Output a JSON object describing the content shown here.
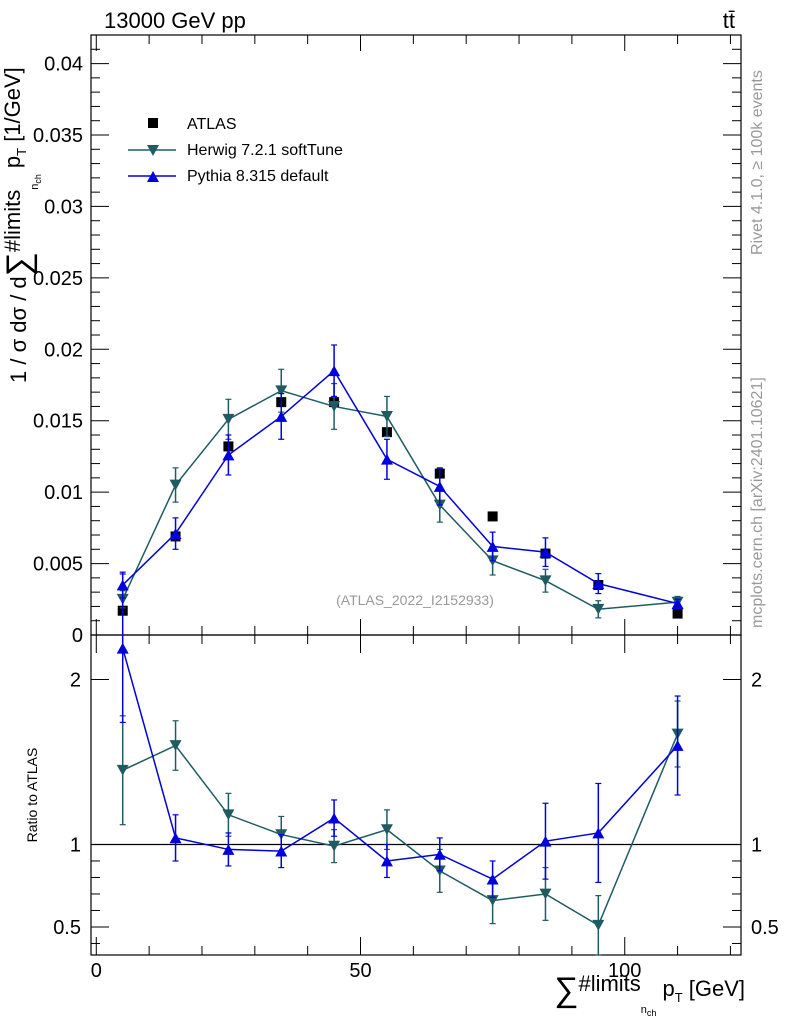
{
  "header": {
    "left_label": "13000 GeV pp",
    "right_label": "tt̄"
  },
  "side_labels": {
    "rivet": "Rivet 4.1.0, ≥ 100k events",
    "mcplots": "mcplots.cern.ch [arXiv:2401.10621]"
  },
  "colors": {
    "atlas": "#000000",
    "herwig": "#1f5b63",
    "pythia": "#0000dd",
    "watermark": "#999999"
  },
  "chart_data": [
    {
      "type": "scatter",
      "title": "Main distribution",
      "ylabel_parts": {
        "a": "1 / σ dσ / d",
        "sum": "∑",
        "limits": "#limits",
        "sub_nch": "n",
        "sub_ch": "ch",
        "pt": "p",
        "pt_sub": "T",
        "unit": " [1/GeV]"
      },
      "watermark": "(ATLAS_2022_I2152933)",
      "ylim": [
        0,
        0.042
      ],
      "yticks": [
        {
          "v": 0,
          "label": "0"
        },
        {
          "v": 0.005,
          "label": "0.005"
        },
        {
          "v": 0.01,
          "label": "0.01"
        },
        {
          "v": 0.015,
          "label": "0.015"
        },
        {
          "v": 0.02,
          "label": "0.02"
        },
        {
          "v": 0.025,
          "label": "0.025"
        },
        {
          "v": 0.03,
          "label": "0.03"
        },
        {
          "v": 0.035,
          "label": "0.035"
        },
        {
          "v": 0.04,
          "label": "0.04"
        }
      ],
      "legend": [
        {
          "key": "atlas",
          "label": "ATLAS"
        },
        {
          "key": "herwig",
          "label": "Herwig 7.2.1 softTune"
        },
        {
          "key": "pythia",
          "label": "Pythia 8.315 default"
        }
      ],
      "x": [
        5,
        15,
        25,
        35,
        45,
        55,
        65,
        75,
        85,
        95,
        110
      ],
      "series": [
        {
          "key": "atlas",
          "name": "ATLAS",
          "values": [
            0.0017,
            0.0069,
            0.0132,
            0.0163,
            0.0163,
            0.0142,
            0.0113,
            0.0083,
            0.0057,
            0.0035,
            0.0015
          ]
        },
        {
          "key": "herwig",
          "name": "Herwig 7.2.1 softTune",
          "values": [
            0.0025,
            0.0105,
            0.0151,
            0.0171,
            0.016,
            0.0153,
            0.0091,
            0.0052,
            0.0038,
            0.0018,
            0.0023
          ],
          "errors": [
            0.0006,
            0.0012,
            0.0014,
            0.0015,
            0.0016,
            0.0014,
            0.0012,
            0.001,
            0.0008,
            0.0006,
            0.0004
          ]
        },
        {
          "key": "pythia",
          "name": "Pythia 8.315 default",
          "values": [
            0.0035,
            0.0071,
            0.0126,
            0.0153,
            0.0185,
            0.0123,
            0.0104,
            0.0062,
            0.0058,
            0.0036,
            0.0022
          ],
          "errors": [
            0.0009,
            0.0011,
            0.0014,
            0.0016,
            0.0018,
            0.0014,
            0.0013,
            0.001,
            0.001,
            0.0007,
            0.0003
          ]
        }
      ]
    },
    {
      "type": "scatter",
      "title": "Ratio panel",
      "ylabel": "Ratio to ATLAS",
      "ylim": [
        0.33,
        2.27
      ],
      "reference_line": 1,
      "yticks": [
        {
          "v": 0.5,
          "label": "0.5"
        },
        {
          "v": 1,
          "label": "1"
        },
        {
          "v": 2,
          "label": "2"
        }
      ],
      "xlim": [
        -1,
        122
      ],
      "xticks": [
        {
          "v": 0,
          "label": "0"
        },
        {
          "v": 50,
          "label": "50"
        },
        {
          "v": 100,
          "label": "100"
        }
      ],
      "xlabel_parts": {
        "sum": "∑",
        "limits": "#limits",
        "sub_nch": "n",
        "sub_ch": "ch",
        "pt": "p",
        "pt_sub": "T",
        "unit": " [GeV]"
      },
      "x": [
        5,
        15,
        25,
        35,
        45,
        55,
        65,
        75,
        85,
        95,
        110
      ],
      "series": [
        {
          "key": "herwig",
          "name": "Herwig 7.2.1 softTune",
          "values": [
            1.45,
            1.6,
            1.18,
            1.06,
            0.99,
            1.09,
            0.84,
            0.66,
            0.7,
            0.51,
            1.67
          ],
          "errors": [
            0.33,
            0.15,
            0.13,
            0.11,
            0.1,
            0.12,
            0.13,
            0.14,
            0.16,
            0.18,
            0.2
          ]
        },
        {
          "key": "pythia",
          "name": "Pythia 8.315 default",
          "values": [
            2.19,
            1.04,
            0.97,
            0.96,
            1.16,
            0.9,
            0.94,
            0.79,
            1.02,
            1.07,
            1.6
          ],
          "errors": [
            0.45,
            0.14,
            0.1,
            0.1,
            0.11,
            0.1,
            0.1,
            0.11,
            0.23,
            0.3,
            0.3
          ]
        }
      ]
    }
  ]
}
